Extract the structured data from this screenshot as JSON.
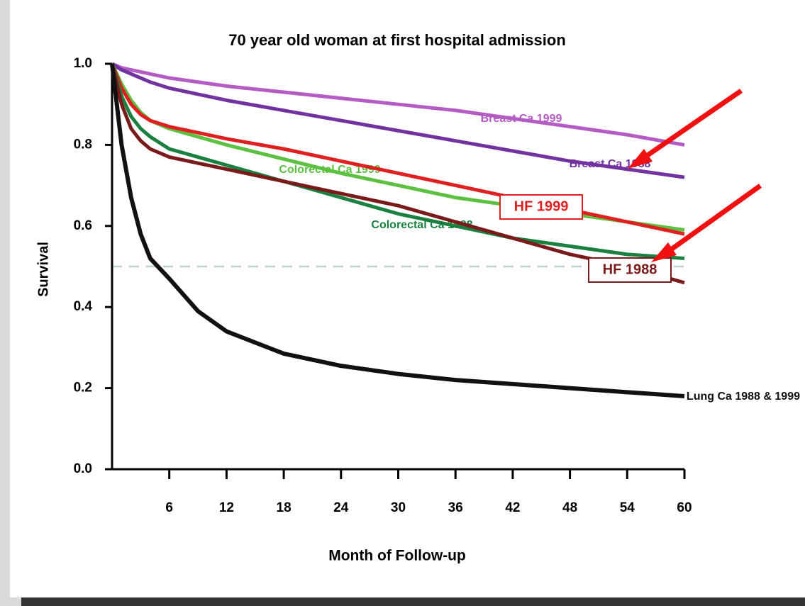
{
  "chart_data": {
    "type": "line",
    "title": "70 year old woman at first hospital admission",
    "xlabel": "Month of Follow-up",
    "ylabel": "Survival",
    "x": [
      0,
      1,
      2,
      3,
      4,
      6,
      9,
      12,
      18,
      24,
      30,
      36,
      42,
      48,
      54,
      60
    ],
    "series": [
      {
        "name": "Breast Ca 1999",
        "color": "#b45cc4",
        "values": [
          1,
          0.99,
          0.985,
          0.98,
          0.975,
          0.965,
          0.955,
          0.945,
          0.93,
          0.915,
          0.9,
          0.885,
          0.865,
          0.845,
          0.825,
          0.8
        ]
      },
      {
        "name": "Breast Ca 1988",
        "color": "#7233a0",
        "values": [
          1,
          0.985,
          0.975,
          0.965,
          0.955,
          0.94,
          0.925,
          0.91,
          0.885,
          0.86,
          0.835,
          0.81,
          0.785,
          0.76,
          0.74,
          0.72
        ]
      },
      {
        "name": "Colorectal Ca 1999",
        "color": "#5cc040",
        "values": [
          1,
          0.95,
          0.91,
          0.88,
          0.86,
          0.84,
          0.82,
          0.8,
          0.765,
          0.73,
          0.7,
          0.67,
          0.65,
          0.63,
          0.61,
          0.59
        ]
      },
      {
        "name": "HF 1999",
        "color": "#e02020",
        "values": [
          1,
          0.94,
          0.9,
          0.875,
          0.86,
          0.845,
          0.83,
          0.815,
          0.79,
          0.76,
          0.73,
          0.7,
          0.67,
          0.64,
          0.61,
          0.58
        ]
      },
      {
        "name": "Colorectal Ca 1988",
        "color": "#1a8040",
        "values": [
          1,
          0.92,
          0.87,
          0.84,
          0.82,
          0.79,
          0.77,
          0.75,
          0.71,
          0.67,
          0.63,
          0.6,
          0.57,
          0.55,
          0.53,
          0.52
        ]
      },
      {
        "name": "HF 1988",
        "color": "#7a1a1a",
        "values": [
          1,
          0.9,
          0.84,
          0.81,
          0.79,
          0.77,
          0.755,
          0.74,
          0.71,
          0.68,
          0.65,
          0.61,
          0.57,
          0.53,
          0.5,
          0.46
        ]
      },
      {
        "name": "Lung Ca 1988 & 1999",
        "color": "#111111",
        "values": [
          1,
          0.8,
          0.67,
          0.58,
          0.52,
          0.47,
          0.39,
          0.34,
          0.285,
          0.255,
          0.235,
          0.22,
          0.21,
          0.2,
          0.19,
          0.18
        ]
      }
    ],
    "xlim": [
      0,
      60
    ],
    "xticks": [
      6,
      12,
      18,
      24,
      30,
      36,
      42,
      48,
      54,
      60
    ],
    "ylim": [
      0,
      1
    ],
    "yticks": [
      {
        "value": 0,
        "label": "0.0"
      },
      {
        "value": 0.2,
        "label": "0.2"
      },
      {
        "value": 0.4,
        "label": "0.4"
      },
      {
        "value": 0.6,
        "label": "0.6"
      },
      {
        "value": 0.8,
        "label": "0.8"
      },
      {
        "value": 1,
        "label": "1.0"
      }
    ],
    "reference_lines": [
      0.5
    ]
  }
}
